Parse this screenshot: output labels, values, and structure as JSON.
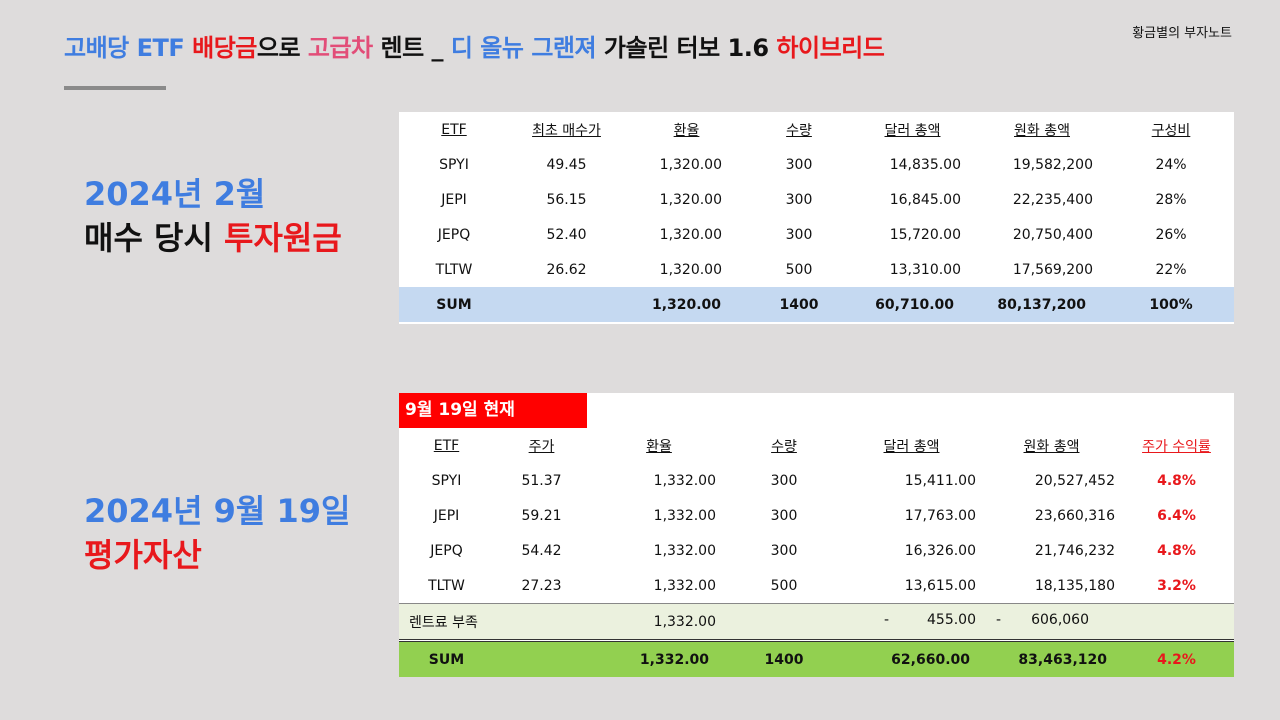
{
  "title": {
    "p1": "고배당 ETF ",
    "p2": "배당금",
    "p3": "으로 ",
    "p4": "고급차",
    "p5": " 렌트 _ ",
    "p6": "디 올뉴 그랜져",
    "p7": " 가솔린 터보 1.6 ",
    "p8": "하이브리드"
  },
  "author": "황금별의 부자노트",
  "left_labels": {
    "buy_date": "2024년 2월",
    "buy_desc_a": "매수 당시 ",
    "buy_desc_b": "투자원금",
    "eval_date": "2024년 9월 19일",
    "eval_desc": "평가자산"
  },
  "colors": {
    "blue": "#3f7de0",
    "red": "#e8181c",
    "pink": "#e24d78",
    "sum_blue": "#c5d9f1",
    "sum_green": "#92d050",
    "rent_bg": "#ebf1de"
  },
  "table1": {
    "headers": [
      "ETF",
      "최초 매수가",
      "환율",
      "수량",
      "달러 총액",
      "원화 총액",
      "구성비"
    ],
    "rows": [
      [
        "SPYI",
        "49.45",
        "1,320.00",
        "300",
        "14,835.00",
        "19,582,200",
        "24%"
      ],
      [
        "JEPI",
        "56.15",
        "1,320.00",
        "300",
        "16,845.00",
        "22,235,400",
        "28%"
      ],
      [
        "JEPQ",
        "52.40",
        "1,320.00",
        "300",
        "15,720.00",
        "20,750,400",
        "26%"
      ],
      [
        "TLTW",
        "26.62",
        "1,320.00",
        "500",
        "13,310.00",
        "17,569,200",
        "22%"
      ]
    ],
    "sum": [
      "SUM",
      "",
      "1,320.00",
      "1400",
      "60,710.00",
      "80,137,200",
      "100%"
    ]
  },
  "table2": {
    "date_badge": "9월 19일 현재",
    "headers": [
      "ETF",
      "주가",
      "환율",
      "수량",
      "달러 총액",
      "원화 총액",
      "주가 수익률"
    ],
    "rows": [
      [
        "SPYI",
        "51.37",
        "1,332.00",
        "300",
        "15,411.00",
        "20,527,452",
        "4.8%"
      ],
      [
        "JEPI",
        "59.21",
        "1,332.00",
        "300",
        "17,763.00",
        "23,660,316",
        "6.4%"
      ],
      [
        "JEPQ",
        "54.42",
        "1,332.00",
        "300",
        "16,326.00",
        "21,746,232",
        "4.8%"
      ],
      [
        "TLTW",
        "27.23",
        "1,332.00",
        "500",
        "13,615.00",
        "18,135,180",
        "3.2%"
      ]
    ],
    "rent_row": {
      "label": "렌트료 부족",
      "rate": "1,332.00",
      "usd_sign": "-",
      "usd": "455.00",
      "krw_sign": "-",
      "krw": "606,060"
    },
    "sum": [
      "SUM",
      "1,332.00",
      "1400",
      "62,660.00",
      "83,463,120",
      "4.2%"
    ]
  }
}
